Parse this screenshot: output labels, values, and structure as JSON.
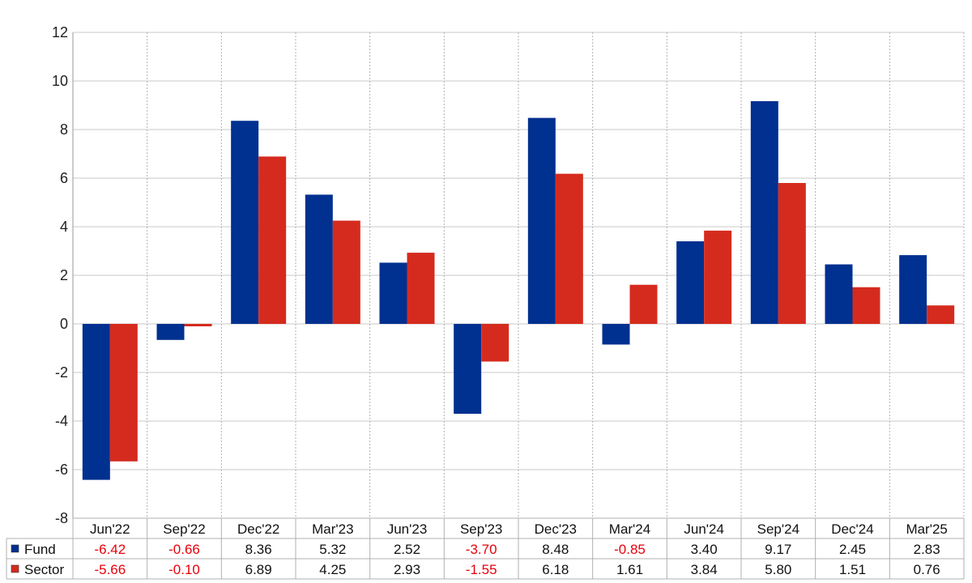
{
  "chart_data": {
    "type": "bar",
    "categories": [
      "Jun'22",
      "Sep'22",
      "Dec'22",
      "Mar'23",
      "Jun'23",
      "Sep'23",
      "Dec'23",
      "Mar'24",
      "Jun'24",
      "Sep'24",
      "Dec'24",
      "Mar'25"
    ],
    "series": [
      {
        "name": "Fund",
        "color": "#003090",
        "values": [
          -6.42,
          -0.66,
          8.36,
          5.32,
          2.52,
          -3.7,
          8.48,
          -0.85,
          3.4,
          9.17,
          2.45,
          2.83
        ],
        "labels": [
          "-6.42",
          "-0.66",
          "8.36",
          "5.32",
          "2.52",
          "-3.70",
          "8.48",
          "-0.85",
          "3.40",
          "9.17",
          "2.45",
          "2.83"
        ]
      },
      {
        "name": "Sector",
        "color": "#d52b1e",
        "values": [
          -5.66,
          -0.1,
          6.89,
          4.25,
          2.93,
          -1.55,
          6.18,
          1.61,
          3.84,
          5.8,
          1.51,
          0.76
        ],
        "labels": [
          "-5.66",
          "-0.10",
          "6.89",
          "4.25",
          "2.93",
          "-1.55",
          "6.18",
          "1.61",
          "3.84",
          "5.80",
          "1.51",
          "0.76"
        ]
      }
    ],
    "y_ticks": [
      "12",
      "10",
      "8",
      "6",
      "4",
      "2",
      "0",
      "-2",
      "-4",
      "-6",
      "-8"
    ],
    "ylim": [
      -8,
      12
    ],
    "negative_color": "#e8000b",
    "positive_color": "#111111",
    "grid": true,
    "legend_placement": "table-rows-bottom"
  }
}
